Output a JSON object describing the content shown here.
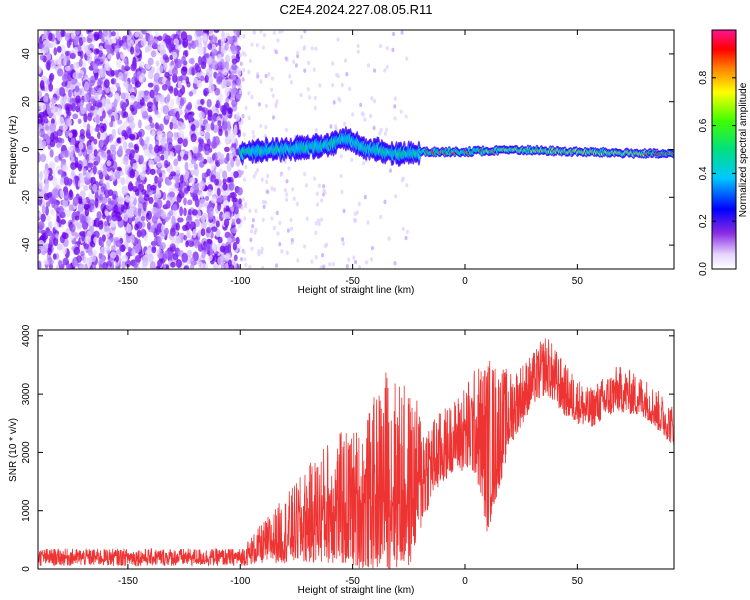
{
  "title": "C2E4.2024.227.08.05.R11",
  "chart_data": [
    {
      "type": "heatmap",
      "xlabel": "Height of straight line (km)",
      "ylabel": "Frequency (Hz)",
      "xlim": [
        -190,
        93
      ],
      "ylim": [
        -50,
        50
      ],
      "xticks": [
        -150,
        -100,
        -50,
        0,
        50
      ],
      "yticks": [
        -40,
        -20,
        0,
        20,
        40
      ],
      "colorbar": {
        "label": "Normalized spectral amplitude",
        "range": [
          0,
          1
        ],
        "ticks": [
          "0.0",
          "0.2",
          "0.4",
          "0.6",
          "0.8"
        ]
      },
      "ridge": {
        "description_values": [
          {
            "x": -100,
            "y": -1
          },
          {
            "x": -80,
            "y": 0
          },
          {
            "x": -60,
            "y": 2
          },
          {
            "x": -53,
            "y": 5
          },
          {
            "x": -45,
            "y": 1
          },
          {
            "x": -30,
            "y": -2
          },
          {
            "x": -20,
            "y": -1
          },
          {
            "x": 0,
            "y": -1
          },
          {
            "x": 20,
            "y": 0
          },
          {
            "x": 50,
            "y": -1
          },
          {
            "x": 93,
            "y": -2
          }
        ]
      }
    },
    {
      "type": "line",
      "xlabel": "Height of straight line (km)",
      "ylabel": "SNR (10 * v/v)",
      "xlim": [
        -190,
        93
      ],
      "ylim": [
        0,
        4100
      ],
      "xticks": [
        -150,
        -100,
        -50,
        0,
        50
      ],
      "yticks": [
        0,
        1000,
        2000,
        3000,
        4000
      ],
      "series": [
        {
          "color": "#ee3333",
          "envelope": [
            {
              "x": -190,
              "low": 50,
              "high": 350
            },
            {
              "x": -100,
              "low": 50,
              "high": 350
            },
            {
              "x": -90,
              "low": 100,
              "high": 800
            },
            {
              "x": -75,
              "low": 100,
              "high": 1500
            },
            {
              "x": -60,
              "low": 100,
              "high": 2300
            },
            {
              "x": -45,
              "low": 0,
              "high": 2500
            },
            {
              "x": -35,
              "low": 0,
              "high": 3500
            },
            {
              "x": -25,
              "low": 0,
              "high": 3100
            },
            {
              "x": -15,
              "low": 1200,
              "high": 2600
            },
            {
              "x": -5,
              "low": 1700,
              "high": 2900
            },
            {
              "x": 5,
              "low": 1600,
              "high": 3500
            },
            {
              "x": 10,
              "low": 600,
              "high": 3700
            },
            {
              "x": 20,
              "low": 2100,
              "high": 3400
            },
            {
              "x": 30,
              "low": 2800,
              "high": 3700
            },
            {
              "x": 36,
              "low": 3000,
              "high": 4050
            },
            {
              "x": 45,
              "low": 2600,
              "high": 3500
            },
            {
              "x": 55,
              "low": 2400,
              "high": 3100
            },
            {
              "x": 68,
              "low": 2700,
              "high": 3500
            },
            {
              "x": 80,
              "low": 2600,
              "high": 3300
            },
            {
              "x": 93,
              "low": 2100,
              "high": 2800
            }
          ]
        }
      ]
    }
  ]
}
